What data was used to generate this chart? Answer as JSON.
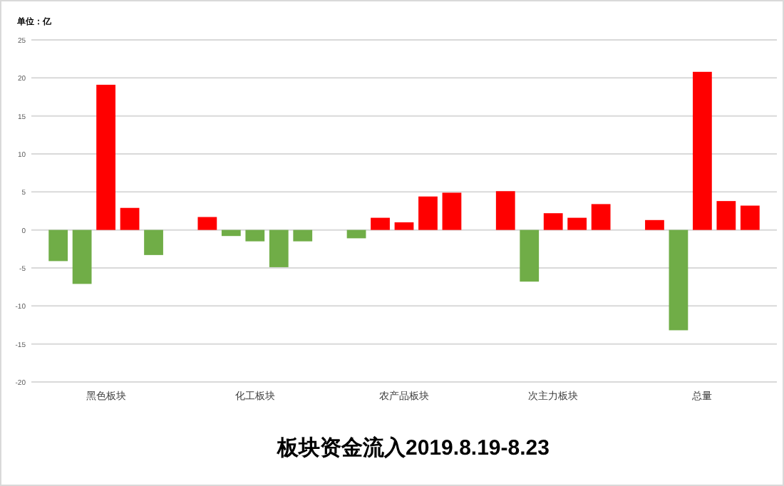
{
  "chart_data": {
    "type": "bar",
    "title": "板块资金流入2019.8.19-8.23",
    "annotations": [
      "单位：亿"
    ],
    "categories": [
      "黑色板块",
      "化工板块",
      "农产品板块",
      "次主力板块",
      "总量"
    ],
    "series": [
      {
        "colors": [
          "#70ad47",
          "#ff0000",
          "#70ad47",
          "#ff0000",
          "#ff0000"
        ],
        "values": [
          -4.1,
          1.7,
          -1.1,
          5.1,
          1.3
        ]
      },
      {
        "colors": [
          "#70ad47",
          "#70ad47",
          "#ff0000",
          "#70ad47",
          "#70ad47"
        ],
        "values": [
          -7.1,
          -0.8,
          1.6,
          -6.8,
          -13.2
        ]
      },
      {
        "colors": [
          "#ff0000",
          "#70ad47",
          "#ff0000",
          "#ff0000",
          "#ff0000"
        ],
        "values": [
          19.1,
          -1.5,
          1.0,
          2.2,
          20.8
        ]
      },
      {
        "colors": [
          "#ff0000",
          "#70ad47",
          "#ff0000",
          "#ff0000",
          "#ff0000"
        ],
        "values": [
          2.9,
          -4.9,
          4.4,
          1.6,
          3.8
        ]
      },
      {
        "colors": [
          "#70ad47",
          "#70ad47",
          "#ff0000",
          "#ff0000",
          "#ff0000"
        ],
        "values": [
          -3.3,
          -1.5,
          4.9,
          3.4,
          3.2
        ]
      }
    ],
    "ylim": [
      -20,
      25
    ],
    "yticks": [
      -20,
      -15,
      -10,
      -5,
      0,
      5,
      10,
      15,
      20,
      25
    ],
    "grid": "y"
  }
}
